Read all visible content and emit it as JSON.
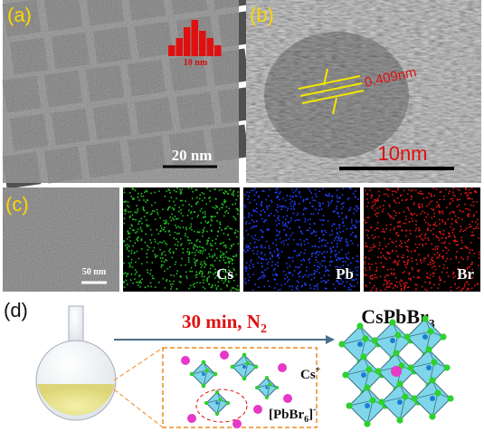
{
  "panels": {
    "a": {
      "label": "(a)",
      "scale_bar": "20 nm",
      "inset": {
        "label": "10 nm",
        "values": [
          3,
          5,
          8,
          10,
          7,
          5,
          3
        ]
      }
    },
    "b": {
      "label": "(b)",
      "d_spacing": "0.409nm",
      "scale_bar": "10nm"
    },
    "c": {
      "label": "(c)",
      "scale_bar": "50 nm",
      "maps": [
        "Cs",
        "Pb",
        "Br"
      ]
    },
    "d": {
      "label": "(d)",
      "condition": "30 min, N",
      "condition_sub": "2",
      "product": "CsPbBr",
      "product_sub": "3",
      "ion_cs": "Cs",
      "ion_cs_sup": "+",
      "ion_pb": "[PbBr",
      "ion_pb_sub": "6",
      "ion_pb_end": "]",
      "ion_pb_sup": "-"
    }
  }
}
